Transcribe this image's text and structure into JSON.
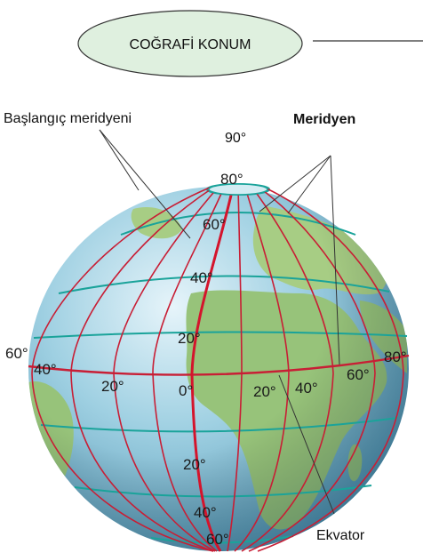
{
  "header": {
    "title": "COĞRAFİ KONUM"
  },
  "labels": {
    "prime_meridian": "Başlangıç meridyeni",
    "north_pole_degree": "90°",
    "meridian": "Meridyen",
    "equator": "Ekvator"
  },
  "latitude_marks": [
    "80°",
    "60°",
    "40°",
    "20°",
    "0°",
    "20°",
    "40°",
    "60°"
  ],
  "longitude_marks": [
    "60°",
    "40°",
    "20°",
    "20°",
    "40°",
    "60°",
    "80°"
  ],
  "colors": {
    "ocean": "#8ec5d8",
    "land": "#9cc77a",
    "parallel_line": "#1aa39a",
    "meridian_line": "#c81e35",
    "prime_meridian_line": "#d4142c"
  }
}
